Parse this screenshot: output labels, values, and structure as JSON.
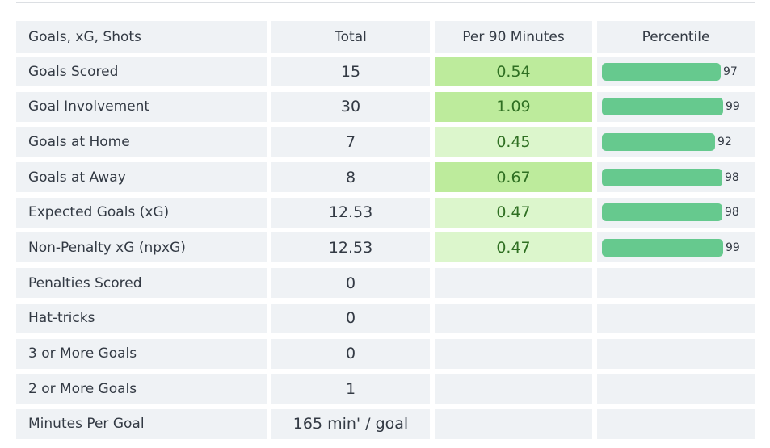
{
  "header": {
    "section_title": "Goals, xG, Shots",
    "col_total": "Total",
    "col_per90": "Per 90 Minutes",
    "col_percentile": "Percentile"
  },
  "colors": {
    "per90_strong": "#bdeb9c",
    "per90_light": "#dcf6cc",
    "per90_none": "#eff2f5",
    "bar": "#66c98e"
  },
  "rows": [
    {
      "name": "Goals Scored",
      "total": "15",
      "per90": "0.54",
      "shade": "strong",
      "percentile": "97"
    },
    {
      "name": "Goal Involvement",
      "total": "30",
      "per90": "1.09",
      "shade": "strong",
      "percentile": "99"
    },
    {
      "name": "Goals at Home",
      "total": "7",
      "per90": "0.45",
      "shade": "light",
      "percentile": "92"
    },
    {
      "name": "Goals at Away",
      "total": "8",
      "per90": "0.67",
      "shade": "strong",
      "percentile": "98"
    },
    {
      "name": "Expected Goals (xG)",
      "total": "12.53",
      "per90": "0.47",
      "shade": "light",
      "percentile": "98"
    },
    {
      "name": "Non-Penalty xG (npxG)",
      "total": "12.53",
      "per90": "0.47",
      "shade": "light",
      "percentile": "99"
    },
    {
      "name": "Penalties Scored",
      "total": "0",
      "per90": "",
      "shade": "none",
      "percentile": ""
    },
    {
      "name": "Hat-tricks",
      "total": "0",
      "per90": "",
      "shade": "none",
      "percentile": ""
    },
    {
      "name": "3 or More Goals",
      "total": "0",
      "per90": "",
      "shade": "none",
      "percentile": ""
    },
    {
      "name": "2 or More Goals",
      "total": "1",
      "per90": "",
      "shade": "none",
      "percentile": ""
    },
    {
      "name": "Minutes Per Goal",
      "total": "165 min' / goal",
      "per90": "",
      "shade": "none",
      "percentile": ""
    }
  ]
}
